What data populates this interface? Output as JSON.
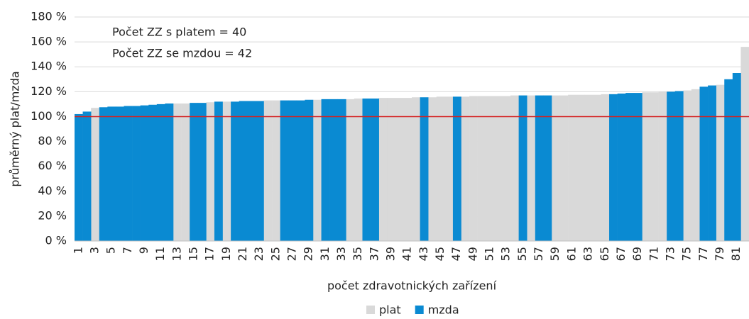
{
  "chart_data": {
    "type": "bar",
    "y_axis_label": "průměrný plat/mzda",
    "x_axis_label": "počet zdravotnických zařízení",
    "annotations": [
      "Počet ZZ s platem = 40",
      "Počet ZZ se mzdou = 42"
    ],
    "categories": [
      "1",
      null,
      "3",
      null,
      "5",
      null,
      "7",
      null,
      "9",
      null,
      "11",
      null,
      "13",
      null,
      "15",
      null,
      "17",
      null,
      "19",
      null,
      "21",
      null,
      "23",
      null,
      "25",
      null,
      "27",
      null,
      "29",
      null,
      "31",
      null,
      "33",
      null,
      "35",
      null,
      "37",
      null,
      "39",
      null,
      "41",
      null,
      "43",
      null,
      "45",
      null,
      "47",
      null,
      "49",
      null,
      "51",
      null,
      "53",
      null,
      "55",
      null,
      "57",
      null,
      "59",
      null,
      "61",
      null,
      "63",
      null,
      "65",
      null,
      "67",
      null,
      "69",
      null,
      "71",
      null,
      "73",
      null,
      "75",
      null,
      "77",
      null,
      "79",
      null,
      "81",
      null
    ],
    "series": [
      {
        "name": "plat",
        "color": "#d9d9d9",
        "values": [
          null,
          null,
          107,
          null,
          null,
          null,
          null,
          null,
          null,
          null,
          null,
          null,
          110.5,
          110.5,
          null,
          null,
          111.5,
          null,
          112,
          null,
          null,
          null,
          null,
          113,
          113,
          null,
          null,
          null,
          null,
          113.5,
          null,
          null,
          null,
          114,
          114.5,
          null,
          null,
          115,
          115,
          115,
          115,
          115.5,
          null,
          115.5,
          116,
          116,
          null,
          116,
          116.5,
          116.5,
          116.5,
          116.5,
          116.5,
          117,
          null,
          117,
          null,
          null,
          117,
          117,
          117.5,
          117.5,
          117.5,
          117.5,
          118,
          null,
          null,
          null,
          null,
          119.5,
          119.5,
          120,
          null,
          null,
          121,
          122,
          null,
          null,
          125.5,
          null,
          null,
          156
        ]
      },
      {
        "name": "mzda",
        "color": "#0a8ad2",
        "values": [
          102,
          104,
          null,
          107.5,
          108,
          108,
          108.5,
          108.5,
          109,
          109.5,
          110,
          110.5,
          null,
          null,
          111,
          111,
          null,
          112,
          null,
          112,
          112.5,
          112.5,
          112.5,
          null,
          null,
          113,
          113,
          113,
          113.5,
          null,
          114,
          114,
          114,
          null,
          null,
          114.5,
          114.5,
          null,
          null,
          null,
          null,
          null,
          115.5,
          null,
          null,
          null,
          116,
          null,
          null,
          null,
          null,
          null,
          null,
          null,
          117,
          null,
          117,
          117,
          null,
          null,
          null,
          null,
          null,
          null,
          null,
          118,
          118.5,
          119,
          119,
          null,
          null,
          null,
          120,
          120.5,
          null,
          null,
          124,
          125,
          null,
          130,
          135,
          null
        ]
      }
    ],
    "reference_line": {
      "value": 100,
      "color": "#d42020"
    },
    "ylim": [
      0,
      180
    ],
    "yticks": [
      {
        "value": 0,
        "label": "0 %"
      },
      {
        "value": 20,
        "label": "20 %"
      },
      {
        "value": 40,
        "label": "40 %"
      },
      {
        "value": 60,
        "label": "60 %"
      },
      {
        "value": 80,
        "label": "80 %"
      },
      {
        "value": 100,
        "label": "100 %"
      },
      {
        "value": 120,
        "label": "120 %"
      },
      {
        "value": 140,
        "label": "140 %"
      },
      {
        "value": 160,
        "label": "160 %"
      },
      {
        "value": 180,
        "label": "180 %"
      }
    ],
    "grid": true,
    "legend": "bottom"
  }
}
